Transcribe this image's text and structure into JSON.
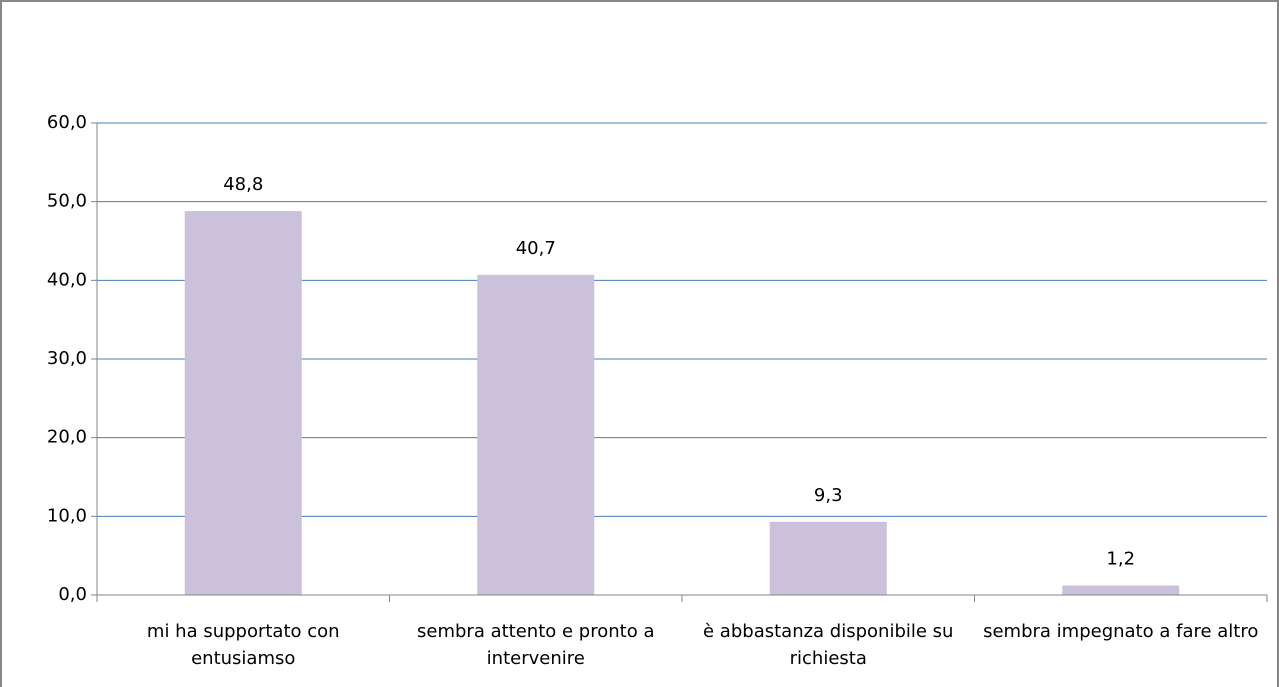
{
  "chart_data": {
    "type": "bar",
    "categories": [
      "mi ha supportato con entusiamso",
      "sembra attento e pronto a intervenire",
      "è abbastanza disponibile su richiesta",
      "sembra impegnato a fare altro"
    ],
    "values": [
      48.8,
      40.7,
      9.3,
      1.2
    ],
    "value_labels": [
      "48,8",
      "40,7",
      "9,3",
      "1,2"
    ],
    "color": "#ccc1da",
    "ylim": [
      0,
      60
    ],
    "yticks": [
      {
        "value": 0,
        "label": "0,0"
      },
      {
        "value": 10,
        "label": "10,0"
      },
      {
        "value": 20,
        "label": "20,0"
      },
      {
        "value": 30,
        "label": "30,0"
      },
      {
        "value": 40,
        "label": "40,0"
      },
      {
        "value": 50,
        "label": "50,0"
      },
      {
        "value": 60,
        "label": "60,0"
      }
    ],
    "grid": true
  }
}
